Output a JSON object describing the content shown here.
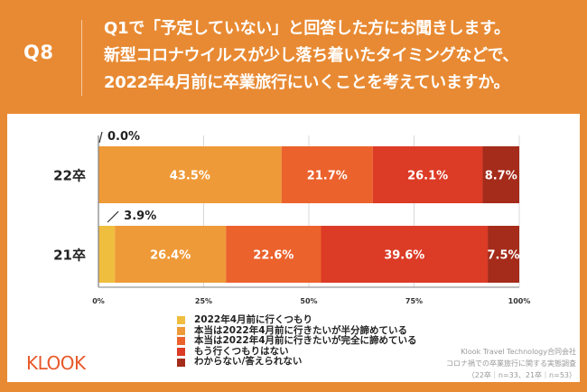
{
  "header": {
    "qnum": "Q8",
    "question_lines": [
      "Q1で「予定していない」と回答した方にお聞きします。",
      "新型コロナウイルスが少し落ち着いたタイミングなどで、",
      "2022年4月前に卒業旅行にいくことを考えていますか。"
    ]
  },
  "brand": {
    "logo_text": "KLOOK",
    "color": "#E8582A"
  },
  "credit": {
    "lines": [
      "Klook Travel Technology合同会社",
      "コロナ禍での卒業旅行に関する実態調査",
      "（22卒｜n=33、21卒｜n=53）"
    ]
  },
  "chart_data": {
    "type": "bar",
    "orientation": "horizontal",
    "stacked": true,
    "title": "",
    "xlabel": "",
    "ylabel": "",
    "xlim": [
      0,
      100
    ],
    "x_ticks": [
      "0%",
      "25%",
      "50%",
      "75%",
      "100%"
    ],
    "grid": true,
    "legend_position": "bottom-center",
    "categories": [
      "22卒",
      "21卒"
    ],
    "series": [
      {
        "name": "2022年4月前に行くつもり",
        "color": "#F0BE3E",
        "values": [
          0.0,
          3.9
        ],
        "labels": [
          "0.0%",
          "3.9%"
        ],
        "label_outside": true
      },
      {
        "name": "本当は2022年4月前に行きたいが半分諦めている",
        "color": "#EF9A38",
        "values": [
          43.5,
          26.4
        ],
        "labels": [
          "43.5%",
          "26.4%"
        ]
      },
      {
        "name": "本当は2022年4月前に行きたいが完全に諦めている",
        "color": "#EB622C",
        "values": [
          21.7,
          22.6
        ],
        "labels": [
          "21.7%",
          "22.6%"
        ]
      },
      {
        "name": "もう行くつもりはない",
        "color": "#DC3B26",
        "values": [
          26.1,
          39.6
        ],
        "labels": [
          "26.1%",
          "39.6%"
        ]
      },
      {
        "name": "わからない/答えられない",
        "color": "#A52B1A",
        "values": [
          8.7,
          7.5
        ],
        "labels": [
          "8.7%",
          "7.5%"
        ]
      }
    ]
  }
}
